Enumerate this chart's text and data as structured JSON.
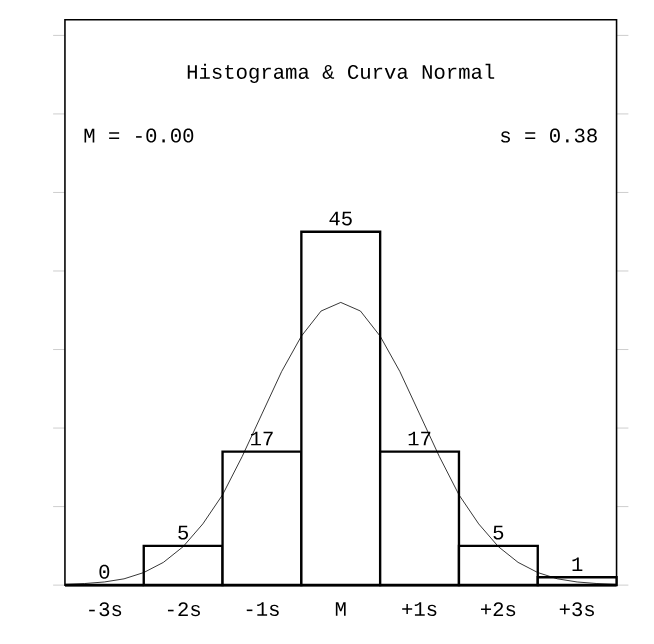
{
  "chart_data": {
    "type": "histogram",
    "title": "Histograma & Curva Normal",
    "annotations": [
      "M =  -0.00",
      "s =   0.38"
    ],
    "bins": [
      -3.5,
      -2.5,
      -1.5,
      -0.5,
      0.5,
      1.5,
      2.5,
      3.5
    ],
    "values": [
      0,
      5,
      17,
      45,
      17,
      5,
      1
    ],
    "color": "#ffffff",
    "value_labels": [
      "0",
      "5",
      "17",
      "45",
      "17",
      "5",
      "1"
    ],
    "xlim": [
      -3.5,
      3.5
    ],
    "xticks": [
      {
        "value": -3,
        "label": "-3s"
      },
      {
        "value": -2,
        "label": "-2s"
      },
      {
        "value": -1,
        "label": "-1s"
      },
      {
        "value": 0,
        "label": "M"
      },
      {
        "value": 1,
        "label": "+1s"
      },
      {
        "value": 2,
        "label": "+2s"
      },
      {
        "value": 3,
        "label": "+3s"
      }
    ],
    "ylim": [
      0,
      72
    ],
    "yticks": [
      {
        "value": 0,
        "label": null
      },
      {
        "value": 10,
        "label": null
      },
      {
        "value": 20,
        "label": null
      },
      {
        "value": 30,
        "label": null
      },
      {
        "value": 40,
        "label": null
      },
      {
        "value": 50,
        "label": null
      },
      {
        "value": 60,
        "label": null
      },
      {
        "value": 70,
        "label": null
      }
    ],
    "tick_labels": "x",
    "series": [
      {
        "type": "line",
        "color": "#000000",
        "x": [
          -3.5,
          -3.25,
          -3,
          -2.75,
          -2.5,
          -2.25,
          -2,
          -1.75,
          -1.5,
          -1.25,
          -1,
          -0.75,
          -0.5,
          -0.25,
          0,
          0.25,
          0.5,
          0.75,
          1,
          1.25,
          1.5,
          1.75,
          2,
          2.25,
          2.5,
          2.75,
          3,
          3.25,
          3.5
        ],
        "values": [
          0.1,
          0.2,
          0.4,
          0.8,
          1.6,
          2.9,
          4.9,
          7.8,
          11.5,
          16.4,
          21.8,
          27.2,
          31.7,
          34.9,
          36,
          34.9,
          31.7,
          27.2,
          21.8,
          16.4,
          11.5,
          7.8,
          4.9,
          2.9,
          1.6,
          0.8,
          0.4,
          0.2,
          0.1
        ]
      }
    ]
  }
}
